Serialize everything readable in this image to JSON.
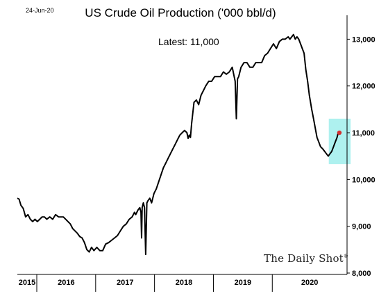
{
  "date_stamp": "24-Jun-20",
  "chart_data": {
    "type": "line",
    "title": "US Crude Oil Production ('000 bbl/d)",
    "annotation": "Latest:  11,000",
    "brand": "The Daily Shot",
    "brand_mark": "®",
    "xlabel": "",
    "ylabel": "",
    "ylim": [
      8000,
      13000
    ],
    "yticks": [
      8000,
      9000,
      10000,
      11000,
      12000,
      13000
    ],
    "ytick_labels": [
      "8,000",
      "9,000",
      "10,000",
      "11,000",
      "12,000",
      "13,000"
    ],
    "x_range": [
      2015.0,
      2020.6
    ],
    "year_labels": [
      {
        "label": "2015",
        "from": 2015.0,
        "to": 2015.33
      },
      {
        "label": "2016",
        "from": 2015.33,
        "to": 2016.33
      },
      {
        "label": "2017",
        "from": 2016.33,
        "to": 2017.33
      },
      {
        "label": "2018",
        "from": 2017.33,
        "to": 2018.33
      },
      {
        "label": "2019",
        "from": 2018.33,
        "to": 2019.33
      },
      {
        "label": "2020",
        "from": 2019.33,
        "to": 2020.6
      }
    ],
    "grid": false,
    "line_color": "#000000",
    "latest_marker_color": "#d32f2f",
    "highlight_color": "#aef1ef",
    "highlight_box": {
      "x": [
        2020.29,
        2020.66
      ],
      "y": [
        10330,
        11300
      ]
    },
    "series": [
      {
        "x": [
          2015.0,
          2015.03,
          2015.06,
          2015.1,
          2015.14,
          2015.18,
          2015.22,
          2015.26,
          2015.3,
          2015.34,
          2015.38,
          2015.42,
          2015.46,
          2015.5,
          2015.55,
          2015.6,
          2015.65,
          2015.7,
          2015.74,
          2015.78,
          2015.82,
          2015.86,
          2015.9,
          2015.94,
          2015.98,
          2016.02,
          2016.06,
          2016.1,
          2016.14,
          2016.18,
          2016.22,
          2016.26,
          2016.3,
          2016.35,
          2016.4,
          2016.45,
          2016.5,
          2016.55,
          2016.6,
          2016.65,
          2016.7,
          2016.75,
          2016.8,
          2016.85,
          2016.9,
          2016.95,
          2016.99,
          2017.01,
          2017.03,
          2017.05,
          2017.08,
          2017.1,
          2017.11,
          2017.12,
          2017.14,
          2017.16,
          2017.18,
          2017.2,
          2017.22,
          2017.25,
          2017.28,
          2017.32,
          2017.36,
          2017.4,
          2017.44,
          2017.48,
          2017.52,
          2017.56,
          2017.6,
          2017.64,
          2017.68,
          2017.72,
          2017.76,
          2017.8,
          2017.84,
          2017.88,
          2017.9,
          2017.92,
          2017.94,
          2017.96,
          2018.0,
          2018.04,
          2018.08,
          2018.12,
          2018.16,
          2018.2,
          2018.25,
          2018.3,
          2018.35,
          2018.4,
          2018.45,
          2018.5,
          2018.55,
          2018.6,
          2018.65,
          2018.7,
          2018.72,
          2018.74,
          2018.76,
          2018.8,
          2018.85,
          2018.9,
          2018.95,
          2019.0,
          2019.05,
          2019.1,
          2019.15,
          2019.2,
          2019.25,
          2019.3,
          2019.35,
          2019.4,
          2019.45,
          2019.5,
          2019.55,
          2019.6,
          2019.63,
          2019.66,
          2019.69,
          2019.72,
          2019.75,
          2019.78,
          2019.81,
          2019.84,
          2019.87,
          2019.9,
          2019.93,
          2019.96,
          2020.0,
          2020.03,
          2020.06,
          2020.09,
          2020.12,
          2020.15,
          2020.19,
          2020.22,
          2020.25,
          2020.28,
          2020.31,
          2020.34,
          2020.37,
          2020.4,
          2020.43,
          2020.45,
          2020.47
        ],
        "y": [
          9600,
          9580,
          9450,
          9380,
          9200,
          9250,
          9150,
          9100,
          9150,
          9100,
          9150,
          9200,
          9200,
          9150,
          9200,
          9150,
          9250,
          9200,
          9200,
          9200,
          9150,
          9100,
          9050,
          8950,
          8900,
          8850,
          8780,
          8750,
          8650,
          8500,
          8450,
          8550,
          8480,
          8550,
          8480,
          8480,
          8620,
          8650,
          8700,
          8750,
          8800,
          8900,
          9000,
          9050,
          9150,
          9200,
          9300,
          9250,
          9300,
          9350,
          9400,
          9300,
          8750,
          9400,
          9500,
          9400,
          8400,
          9500,
          9550,
          9600,
          9500,
          9700,
          9800,
          9950,
          10100,
          10250,
          10350,
          10450,
          10550,
          10650,
          10750,
          10850,
          10950,
          11000,
          11050,
          11000,
          10880,
          10950,
          10900,
          11200,
          11650,
          11700,
          11600,
          11800,
          11900,
          12000,
          12100,
          12100,
          12200,
          12200,
          12200,
          12300,
          12250,
          12300,
          12400,
          12100,
          11300,
          12150,
          12200,
          12400,
          12500,
          12500,
          12400,
          12400,
          12500,
          12500,
          12500,
          12650,
          12700,
          12800,
          12900,
          12800,
          12950,
          13000,
          13000,
          13050,
          13000,
          13050,
          13100,
          13000,
          13050,
          13000,
          12900,
          12800,
          12700,
          12350,
          12100,
          11800,
          11500,
          11300,
          11100,
          10900,
          10800,
          10700,
          10650,
          10600,
          10550,
          10500,
          10550,
          10600,
          10700,
          10800,
          10900,
          11000,
          11000
        ]
      }
    ]
  }
}
